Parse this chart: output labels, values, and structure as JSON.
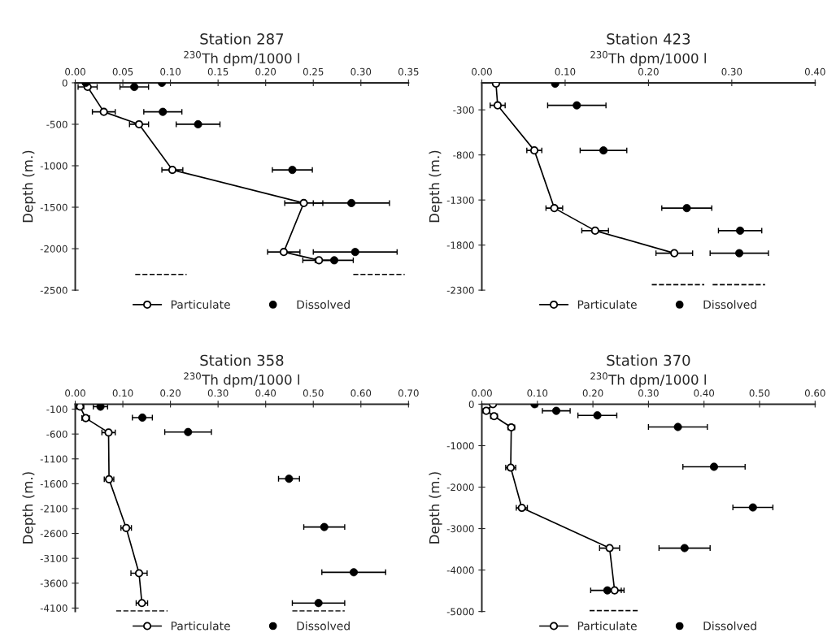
{
  "chart_data": [
    {
      "type": "line",
      "title": "Station 287",
      "xlabel": "$^{230}$Th dpm/1000 l",
      "ylabel": "Depth (m.)",
      "xlim": [
        0,
        0.35
      ],
      "ylim": [
        -2500,
        0
      ],
      "xticks": [
        {
          "value": 0,
          "label": "0.00"
        },
        {
          "value": 0.05,
          "label": "0.05"
        },
        {
          "value": 0.1,
          "label": "0.10"
        },
        {
          "value": 0.15,
          "label": "0.15"
        },
        {
          "value": 0.2,
          "label": "0.20"
        },
        {
          "value": 0.25,
          "label": "0.25"
        },
        {
          "value": 0.3,
          "label": "0.30"
        },
        {
          "value": 0.35,
          "label": "0.35"
        }
      ],
      "yticks": [
        0,
        -500,
        -1000,
        -1500,
        -2000,
        -2500
      ],
      "legend": "bottom",
      "series": [
        {
          "name": "Particulate",
          "type": "line",
          "marker": "circle",
          "color": "#000000",
          "x": [
            0.013,
            0.03,
            0.067,
            0.102,
            0.24,
            0.219,
            0.256
          ],
          "values": [
            -50,
            -350,
            -500,
            -1050,
            -1450,
            -2040,
            -2140
          ],
          "xerrors": [
            0.01,
            0.012,
            0.01,
            0.011,
            0.02,
            0.017,
            0.017
          ]
        },
        {
          "name": "Dissolved",
          "type": "scatter",
          "marker": "circle",
          "color": "#000000",
          "x": [
            0.011,
            0.091,
            0.062,
            0.092,
            0.129,
            0.228,
            0.29,
            0.294,
            0.272
          ],
          "values": [
            0,
            0,
            -50,
            -350,
            -500,
            -1050,
            -1450,
            -2040,
            -2140
          ],
          "xerrors": [
            null,
            null,
            0.015,
            0.02,
            0.023,
            0.021,
            0.04,
            0.044,
            0.02
          ]
        },
        {
          "type": "line",
          "line_style": "dashed",
          "marker": "none",
          "color": "#000000",
          "x": [
            0.063,
            0.117
          ],
          "values": [
            -2310,
            -2310
          ]
        },
        {
          "type": "line",
          "line_style": "dashed",
          "marker": "none",
          "color": "#000000",
          "x": [
            0.292,
            0.346
          ],
          "values": [
            -2310,
            -2310
          ]
        }
      ]
    },
    {
      "type": "line",
      "title": "Station 423",
      "xlabel": "$^{230}$Th dpm/1000 l",
      "ylabel": "Depth (m.)",
      "xlim": [
        0,
        0.4
      ],
      "ylim": [
        -2300,
        0
      ],
      "xticks": [
        {
          "value": 0,
          "label": "0.00"
        },
        {
          "value": 0.1,
          "label": "0.10"
        },
        {
          "value": 0.2,
          "label": "0.20"
        },
        {
          "value": 0.3,
          "label": "0.30"
        },
        {
          "value": 0.4,
          "label": "0.40"
        }
      ],
      "yticks": [
        -300,
        -800,
        -1300,
        -1800,
        -2300
      ],
      "legend": "bottom",
      "series": [
        {
          "name": "Particulate",
          "type": "line",
          "marker": "circle",
          "color": "#000000",
          "x": [
            0.017,
            0.019,
            0.063,
            0.087,
            0.136,
            0.231
          ],
          "values": [
            -10,
            -250,
            -750,
            -1390,
            -1640,
            -1890
          ],
          "xerrors": [
            null,
            0.009,
            0.009,
            0.01,
            0.016,
            0.022
          ]
        },
        {
          "name": "Dissolved",
          "type": "scatter",
          "marker": "circle",
          "color": "#000000",
          "x": [
            0.088,
            0.114,
            0.146,
            0.246,
            0.31,
            0.309
          ],
          "values": [
            -10,
            -250,
            -750,
            -1390,
            -1640,
            -1890
          ],
          "xerrors": [
            null,
            0.035,
            0.028,
            0.03,
            0.026,
            0.035
          ]
        },
        {
          "type": "line",
          "line_style": "dashed",
          "marker": "none",
          "color": "#000000",
          "x": [
            0.204,
            0.267
          ],
          "values": [
            -2240,
            -2240
          ]
        },
        {
          "type": "line",
          "line_style": "dashed",
          "marker": "none",
          "color": "#000000",
          "x": [
            0.277,
            0.34
          ],
          "values": [
            -2240,
            -2240
          ]
        }
      ]
    },
    {
      "type": "line",
      "title": "Station 358",
      "xlabel": "$^{230}$Th dpm/1000 l",
      "ylabel": "Depth (m.)",
      "xlim": [
        0,
        0.7
      ],
      "ylim": [
        -4170,
        0
      ],
      "xticks": [
        {
          "value": 0,
          "label": "0.00"
        },
        {
          "value": 0.1,
          "label": "0.10"
        },
        {
          "value": 0.2,
          "label": "0.20"
        },
        {
          "value": 0.3,
          "label": "0.30"
        },
        {
          "value": 0.4,
          "label": "0.40"
        },
        {
          "value": 0.5,
          "label": "0.50"
        },
        {
          "value": 0.6,
          "label": "0.60"
        },
        {
          "value": 0.7,
          "label": "0.70"
        }
      ],
      "yticks": [
        -100,
        -600,
        -1100,
        -1600,
        -2100,
        -2600,
        -3100,
        -3600,
        -4100
      ],
      "legend": "bottom",
      "series": [
        {
          "name": "Particulate",
          "type": "line",
          "marker": "circle",
          "color": "#000000",
          "x": [
            0.01,
            0.022,
            0.07,
            0.071,
            0.107,
            0.134,
            0.14
          ],
          "values": [
            -50,
            -280,
            -570,
            -1510,
            -2490,
            -3400,
            -4000
          ],
          "xerrors": [
            0.008,
            0.008,
            0.014,
            0.01,
            0.011,
            0.017,
            0.012
          ]
        },
        {
          "name": "Dissolved",
          "type": "scatter",
          "marker": "circle",
          "color": "#000000",
          "x": [
            0.053,
            0.141,
            0.237,
            0.449,
            0.523,
            0.585,
            0.511
          ],
          "values": [
            -50,
            -270,
            -560,
            -1500,
            -2470,
            -3380,
            -4000
          ],
          "xerrors": [
            0.015,
            0.021,
            0.049,
            0.022,
            0.043,
            0.067,
            0.055
          ]
        },
        {
          "type": "line",
          "line_style": "dashed",
          "marker": "none",
          "color": "#000000",
          "x": [
            0.086,
            0.194
          ],
          "values": [
            -4160,
            -4160
          ]
        },
        {
          "type": "line",
          "line_style": "dashed",
          "marker": "none",
          "color": "#000000",
          "x": [
            0.456,
            0.566
          ],
          "values": [
            -4160,
            -4160
          ]
        }
      ]
    },
    {
      "type": "line",
      "title": "Station 370",
      "xlabel": "$^{230}$Th dpm/1000 l",
      "ylabel": "Depth (m.)",
      "xlim": [
        0,
        0.6
      ],
      "ylim": [
        -5000,
        0
      ],
      "xticks": [
        {
          "value": 0,
          "label": "0.00"
        },
        {
          "value": 0.1,
          "label": "0.10"
        },
        {
          "value": 0.2,
          "label": "0.20"
        },
        {
          "value": 0.3,
          "label": "0.30"
        },
        {
          "value": 0.4,
          "label": "0.40"
        },
        {
          "value": 0.5,
          "label": "0.50"
        },
        {
          "value": 0.6,
          "label": "0.60"
        }
      ],
      "yticks": [
        0,
        -1000,
        -2000,
        -3000,
        -4000,
        -5000
      ],
      "legend": "bottom",
      "series": [
        {
          "name": "Particulate",
          "type": "line",
          "marker": "circle",
          "color": "#000000",
          "x": [
            0.02,
            0.008,
            0.022,
            0.053,
            0.052,
            0.072,
            0.23,
            0.239
          ],
          "values": [
            0,
            -160,
            -290,
            -560,
            -1530,
            -2500,
            -3470,
            -4490
          ],
          "xerrors": [
            null,
            0.006,
            0.006,
            0.006,
            0.009,
            0.01,
            0.018,
            0.012
          ]
        },
        {
          "name": "Dissolved",
          "type": "scatter",
          "marker": "circle",
          "color": "#000000",
          "x": [
            0.095,
            0.134,
            0.208,
            0.353,
            0.418,
            0.488,
            0.365,
            0.226
          ],
          "values": [
            0,
            -160,
            -270,
            -550,
            -1510,
            -2490,
            -3470,
            -4490
          ],
          "xerrors": [
            null,
            0.025,
            0.035,
            0.053,
            0.056,
            0.036,
            0.046,
            0.03
          ]
        },
        {
          "type": "line",
          "line_style": "dashed",
          "marker": "none",
          "color": "#000000",
          "x": [
            0.194,
            0.284
          ],
          "values": [
            -4980,
            -4980
          ]
        }
      ]
    }
  ]
}
